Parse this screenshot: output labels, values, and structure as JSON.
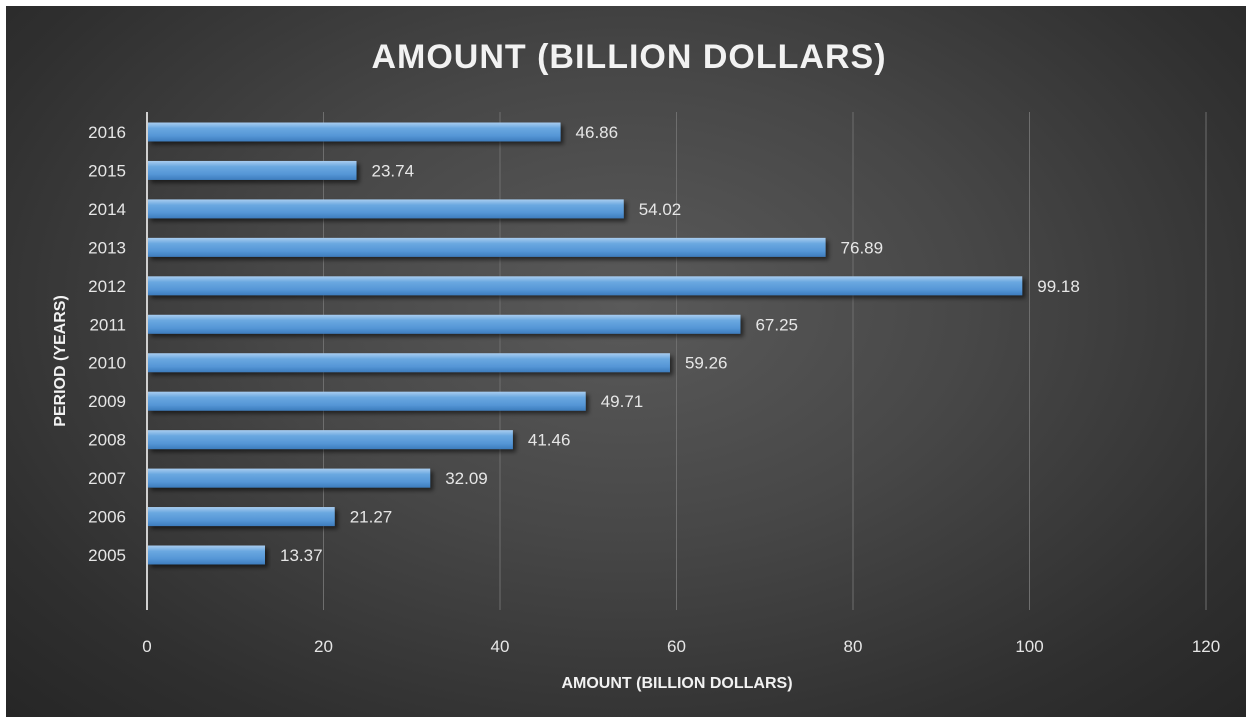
{
  "chart_data": {
    "type": "bar",
    "orientation": "horizontal",
    "title": "AMOUNT (BILLION DOLLARS)",
    "xlabel": "AMOUNT (BILLION DOLLARS)",
    "ylabel": "PERIOD (YEARS)",
    "categories": [
      "2005",
      "2006",
      "2007",
      "2008",
      "2009",
      "2010",
      "2011",
      "2012",
      "2013",
      "2014",
      "2015",
      "2016"
    ],
    "values": [
      13.37,
      21.27,
      32.09,
      41.46,
      49.71,
      59.26,
      67.25,
      99.18,
      76.89,
      54.02,
      23.74,
      46.86
    ],
    "data_labels": [
      "13.37",
      "21.27",
      "32.09",
      "41.46",
      "49.71",
      "59.26",
      "67.25",
      "99.18",
      "76.89",
      "54.02",
      "23.74",
      "46.86"
    ],
    "xlim": [
      0,
      120
    ],
    "x_ticks": [
      "0",
      "20",
      "40",
      "60",
      "80",
      "100",
      "120"
    ],
    "grid": true,
    "legend": "none",
    "colors": {
      "bar": "#5b9bd5",
      "bar_highlight": "#9cc3ea",
      "bar_shade": "#3f7fbf",
      "grid": "#6e6e6e",
      "axis": "#cfcfcf",
      "text": "#e6e6e6"
    }
  }
}
